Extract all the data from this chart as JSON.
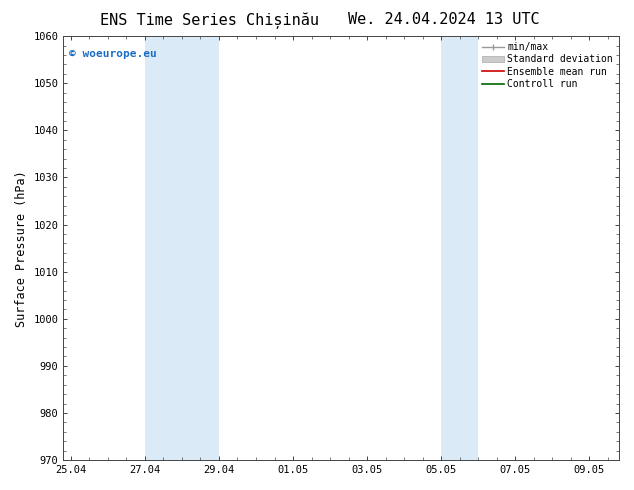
{
  "title_left": "ENS Time Series Chișinău",
  "title_right": "We. 24.04.2024 13 UTC",
  "ylabel": "Surface Pressure (hPa)",
  "ylim": [
    970,
    1060
  ],
  "yticks": [
    970,
    980,
    990,
    1000,
    1010,
    1020,
    1030,
    1040,
    1050,
    1060
  ],
  "xtick_labels": [
    "25.04",
    "27.04",
    "29.04",
    "01.05",
    "03.05",
    "05.05",
    "07.05",
    "09.05"
  ],
  "xtick_positions": [
    0,
    2,
    4,
    6,
    8,
    10,
    12,
    14
  ],
  "xlim": [
    -0.2,
    14.8
  ],
  "shaded_regions": [
    {
      "xmin": 2,
      "xmax": 4
    },
    {
      "xmin": 10,
      "xmax": 11
    }
  ],
  "shaded_color": "#daeaf7",
  "background_color": "#ffffff",
  "watermark_text": "© woeurope.eu",
  "watermark_color": "#1a6dc5",
  "legend_items": [
    {
      "label": "min/max",
      "color": "#aaaaaa",
      "style": "line_with_caps"
    },
    {
      "label": "Standard deviation",
      "color": "#cccccc",
      "style": "filled"
    },
    {
      "label": "Ensemble mean run",
      "color": "#ff0000",
      "style": "line"
    },
    {
      "label": "Controll run",
      "color": "#007700",
      "style": "line"
    }
  ],
  "figsize": [
    6.34,
    4.9
  ],
  "dpi": 100,
  "title_fontsize": 11,
  "tick_fontsize": 7.5,
  "ylabel_fontsize": 8.5,
  "watermark_fontsize": 8,
  "legend_fontsize": 7
}
